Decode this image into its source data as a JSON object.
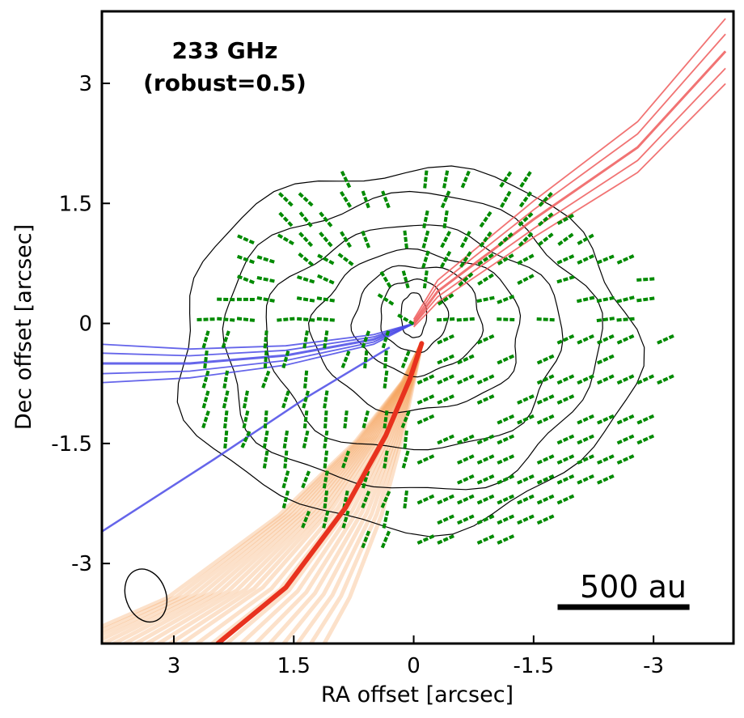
{
  "chart_data": {
    "type": "contour-polarization-map",
    "frequency_label": "233 GHz",
    "weighting_label": "(robust=0.5)",
    "xlabel": "RA offset [arcsec]",
    "ylabel": "Dec offset [arcsec]",
    "xlim": [
      3.9,
      -4.0
    ],
    "ylim": [
      -4.0,
      3.9
    ],
    "x_axis_inverted": true,
    "xticks": [
      3,
      1.5,
      0,
      -1.5,
      -3
    ],
    "xtick_labels": [
      "3",
      "1.5",
      "0",
      "-1.5",
      "-3"
    ],
    "yticks": [
      3,
      1.5,
      0,
      -1.5,
      -3
    ],
    "ytick_labels": [
      "3",
      "1.5",
      "0",
      "-1.5",
      "-3"
    ],
    "scalebar": {
      "label": "500 au",
      "length_arcsec": 1.65,
      "location": "bottom-right"
    },
    "beam": {
      "ra": 3.35,
      "dec": -3.4,
      "major_arcsec": 0.68,
      "minor_arcsec": 0.38,
      "location": "bottom-left"
    },
    "dust_contours": {
      "color": "#000000",
      "levels": [
        {
          "name": "level-1",
          "ra": 0.1,
          "dec": -0.3,
          "rx": 2.85,
          "ry": 2.25
        },
        {
          "name": "level-2",
          "ra": 0.05,
          "dec": -0.25,
          "rx": 2.35,
          "ry": 1.85
        },
        {
          "name": "level-3",
          "ra": 0.0,
          "dec": -0.2,
          "rx": 1.85,
          "ry": 1.4
        },
        {
          "name": "level-4",
          "ra": -0.05,
          "dec": -0.1,
          "rx": 1.3,
          "ry": 1.0
        },
        {
          "name": "level-5",
          "ra": -0.05,
          "dec": 0.05,
          "rx": 0.8,
          "ry": 0.68
        },
        {
          "name": "level-6",
          "ra": 0.0,
          "dec": 0.1,
          "rx": 0.42,
          "ry": 0.45
        },
        {
          "name": "level-7",
          "ra": 0.0,
          "dec": 0.1,
          "rx": 0.16,
          "ry": 0.28
        }
      ]
    },
    "outflow_lobes": {
      "red": {
        "color": "#ef5a5a",
        "path": [
          [
            0.0,
            0.0
          ],
          [
            -0.3,
            0.4
          ],
          [
            -1.5,
            1.3
          ],
          [
            -2.8,
            2.2
          ],
          [
            -3.9,
            3.4
          ]
        ]
      },
      "blue": {
        "color": "#4a4ae6",
        "path": [
          [
            0.0,
            0.0
          ],
          [
            0.5,
            -0.2
          ],
          [
            1.6,
            -0.4
          ],
          [
            2.8,
            -0.5
          ],
          [
            3.9,
            -0.5
          ]
        ],
        "lower_edge": [
          [
            0.3,
            -0.3
          ],
          [
            1.3,
            -0.9
          ],
          [
            2.5,
            -1.7
          ],
          [
            3.9,
            -2.6
          ]
        ]
      }
    },
    "streamer": {
      "color": "#e8321e",
      "model_fan_color": "#f5a35a",
      "path": [
        [
          -0.1,
          -0.25
        ],
        [
          0.05,
          -0.7
        ],
        [
          0.35,
          -1.4
        ],
        [
          0.85,
          -2.3
        ],
        [
          1.6,
          -3.3
        ],
        [
          2.45,
          -4.0
        ]
      ]
    },
    "polarization_vectors": {
      "color": "#008a00",
      "note": "B-field segments, approximately radial pattern around the protostar",
      "grid_spacing_arcsec": 0.25
    }
  }
}
